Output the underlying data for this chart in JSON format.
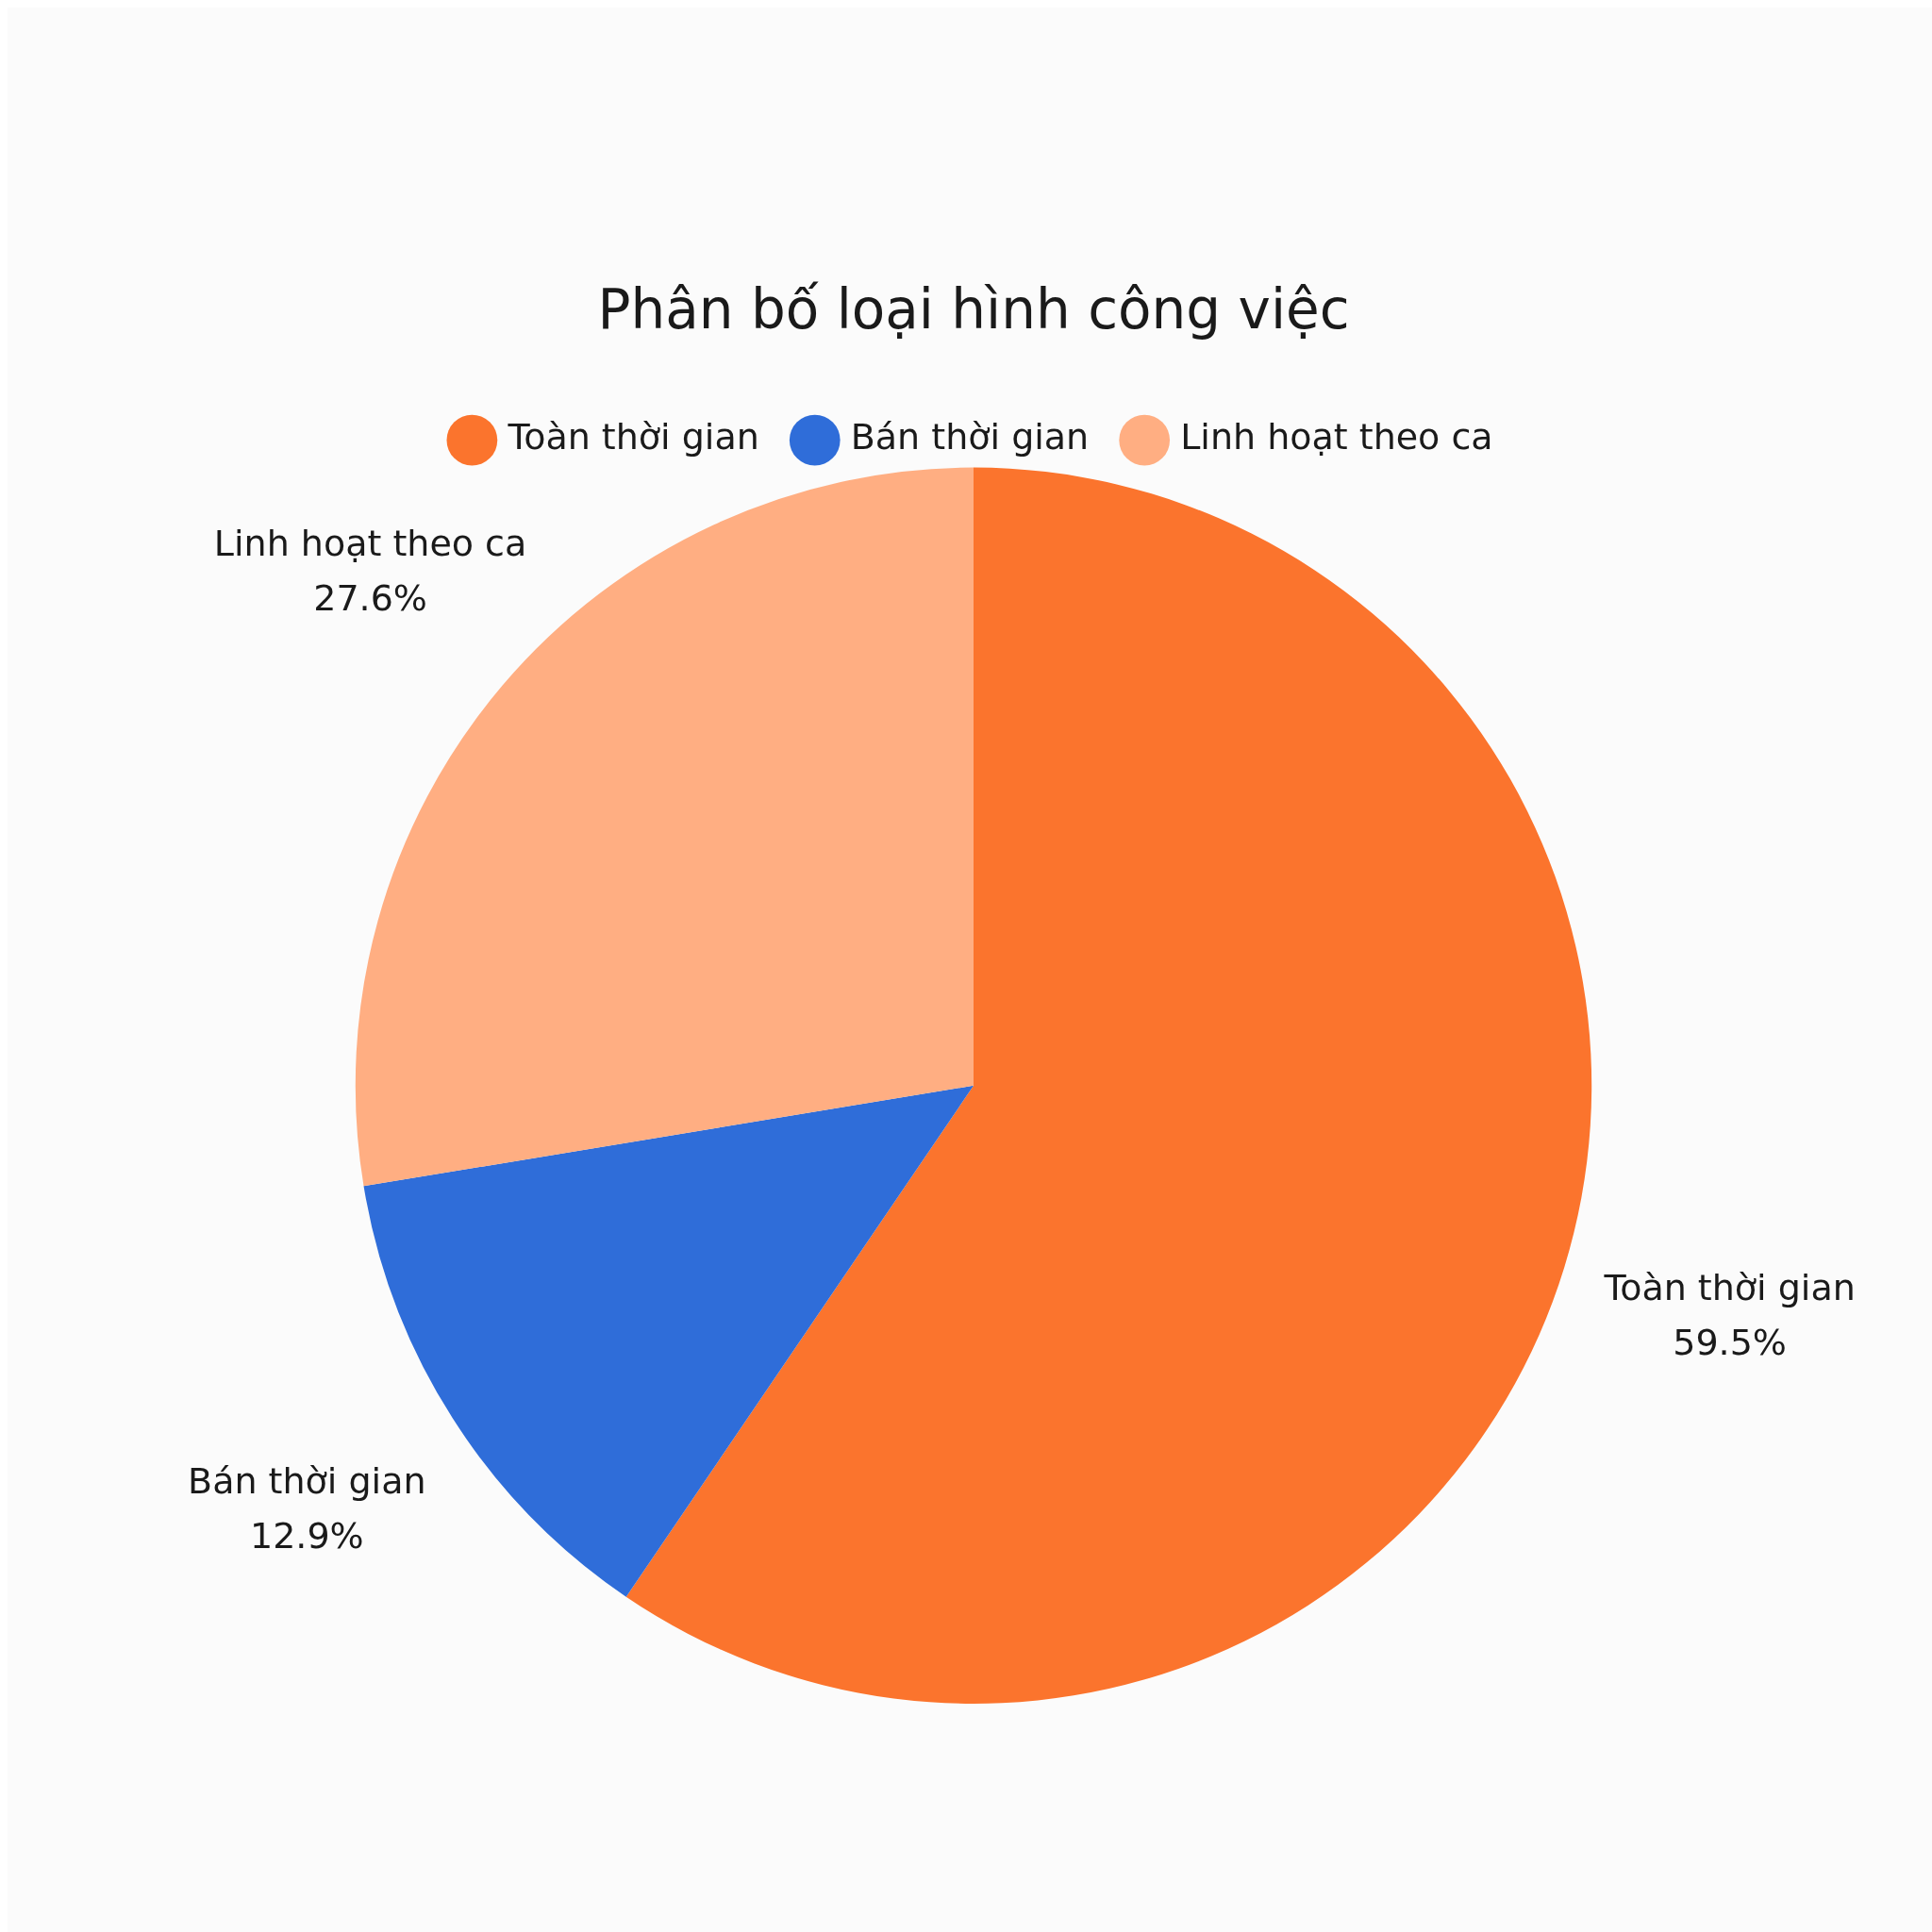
{
  "chart_data": {
    "type": "pie",
    "title": "Phân bố loại hình công việc",
    "categories": [
      "Toàn thời gian",
      "Bán thời gian",
      "Linh hoạt theo ca"
    ],
    "values": [
      59.5,
      12.9,
      27.6
    ],
    "value_labels": [
      "59.5%",
      "12.9%",
      "27.6%"
    ],
    "colors": [
      "#fb742d",
      "#2f6dd9",
      "#ffae82"
    ],
    "legend": "top"
  }
}
